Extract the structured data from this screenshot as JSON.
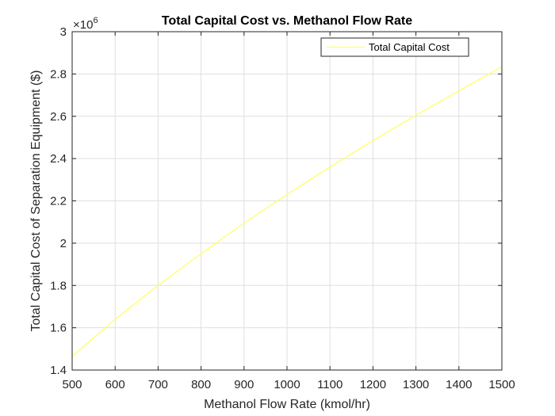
{
  "chart_data": {
    "type": "line",
    "title": "Total Capital Cost vs. Methanol Flow Rate",
    "xlabel": "Methanol Flow Rate (kmol/hr)",
    "ylabel": "Total Capital Cost of Separation Equipment ($)",
    "y_exponent_label": "×10",
    "y_exponent_power": "6",
    "xlim": [
      500,
      1500
    ],
    "ylim": [
      1.4,
      3.0
    ],
    "x_ticks": [
      500,
      600,
      700,
      800,
      900,
      1000,
      1100,
      1200,
      1300,
      1400,
      1500
    ],
    "x_tick_labels": [
      "500",
      "600",
      "700",
      "800",
      "900",
      "1000",
      "1100",
      "1200",
      "1300",
      "1400",
      "1500"
    ],
    "y_ticks": [
      1.4,
      1.6,
      1.8,
      2.0,
      2.2,
      2.4,
      2.6,
      2.8,
      3.0
    ],
    "y_tick_labels": [
      "1.4",
      "1.6",
      "1.8",
      "2",
      "2.2",
      "2.4",
      "2.6",
      "2.8",
      "3"
    ],
    "grid": true,
    "legend_position": "top-right",
    "series": [
      {
        "name": "Total Capital Cost",
        "color": "#ffff66",
        "x": [
          500,
          600,
          700,
          800,
          900,
          1000,
          1100,
          1200,
          1300,
          1400,
          1500
        ],
        "y": [
          1.465,
          1.64,
          1.8,
          1.95,
          2.095,
          2.23,
          2.36,
          2.485,
          2.605,
          2.72,
          2.835
        ]
      }
    ]
  }
}
